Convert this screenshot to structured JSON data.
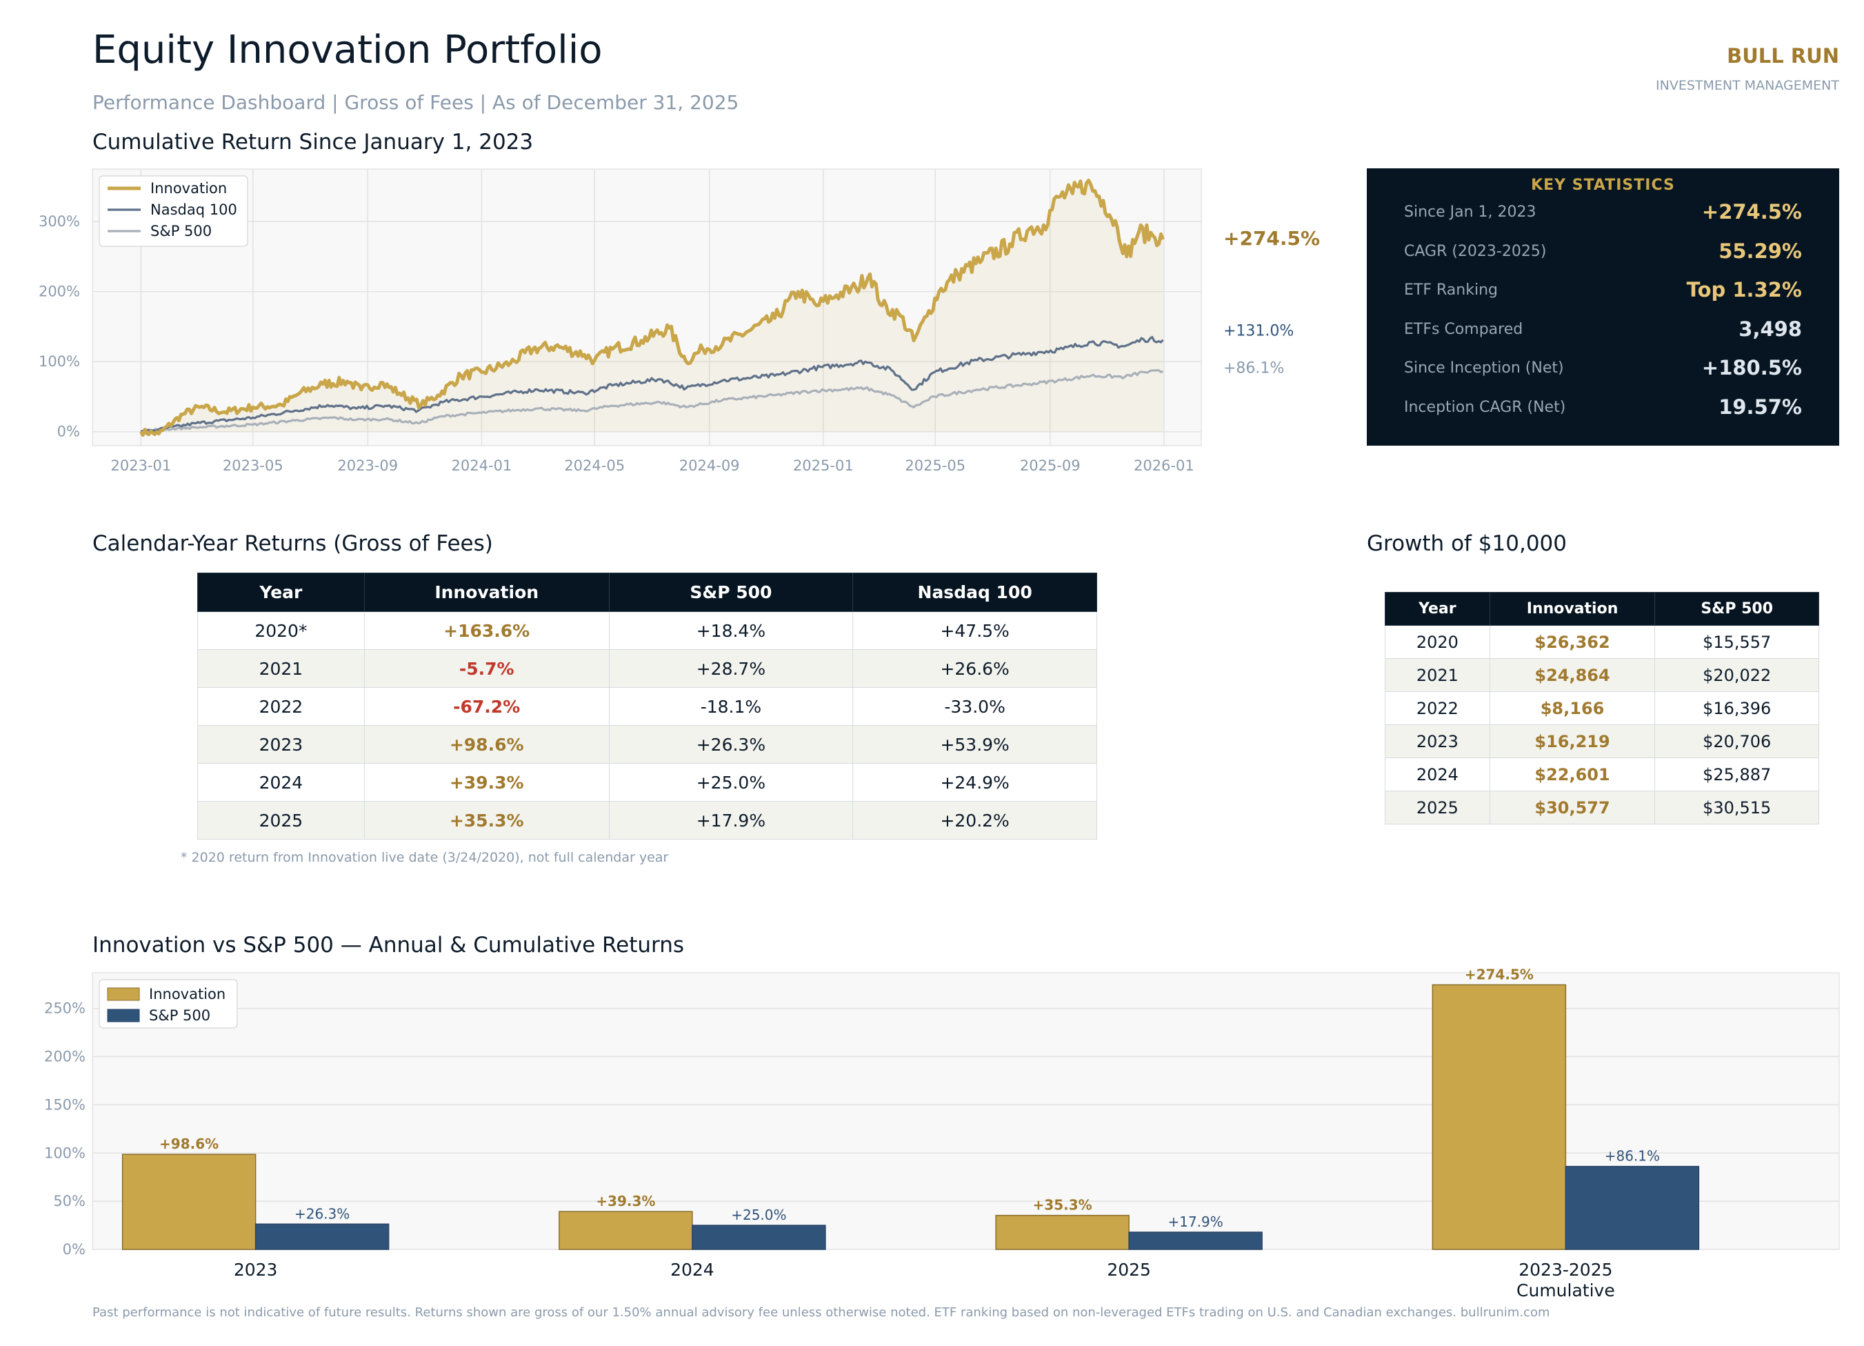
{
  "header": {
    "title": "Equity Innovation Portfolio",
    "subtitle": "Performance Dashboard  |  Gross of Fees  |  As of December 31, 2025",
    "brand": "BULL RUN",
    "brand_sub": "INVESTMENT MANAGEMENT"
  },
  "colors": {
    "gold": "#c9a64a",
    "gold_text": "#a07a2e",
    "navy": "#061521",
    "slate": "#5f7189",
    "gray": "#a9b0b9",
    "sp_blue": "#30537a",
    "red": "#c0392b"
  },
  "sections": {
    "cumulative": "Cumulative Return Since January 1, 2023",
    "calendar": "Calendar-Year Returns (Gross of Fees)",
    "growth": "Growth of $10,000",
    "bars": "Innovation vs S&P 500 — Annual & Cumulative Returns"
  },
  "stats": {
    "title": "KEY STATISTICS",
    "rows": [
      {
        "label": "Since Jan 1, 2023",
        "value": "+274.5%",
        "color": "#e8c77a"
      },
      {
        "label": "CAGR (2023-2025)",
        "value": "55.29%",
        "color": "#e8c77a"
      },
      {
        "label": "ETF Ranking",
        "value": "Top 1.32%",
        "color": "#e8c77a"
      },
      {
        "label": "ETFs Compared",
        "value": "3,498",
        "color": "#dfe6ee"
      },
      {
        "label": "Since Inception (Net)",
        "value": "+180.5%",
        "color": "#dfe6ee"
      },
      {
        "label": "Inception CAGR (Net)",
        "value": "19.57%",
        "color": "#dfe6ee"
      }
    ]
  },
  "calendar_table": {
    "headers": [
      "Year",
      "Innovation",
      "S&P 500",
      "Nasdaq 100"
    ],
    "rows": [
      [
        "2020*",
        "+163.6%",
        "+18.4%",
        "+47.5%"
      ],
      [
        "2021",
        "-5.7%",
        "+28.7%",
        "+26.6%"
      ],
      [
        "2022",
        "-67.2%",
        "-18.1%",
        "-33.0%"
      ],
      [
        "2023",
        "+98.6%",
        "+26.3%",
        "+53.9%"
      ],
      [
        "2024",
        "+39.3%",
        "+25.0%",
        "+24.9%"
      ],
      [
        "2025",
        "+35.3%",
        "+17.9%",
        "+20.2%"
      ]
    ],
    "note": "* 2020 return from Innovation live date (3/24/2020), not full calendar year"
  },
  "growth_table": {
    "headers": [
      "Year",
      "Innovation",
      "S&P 500"
    ],
    "rows": [
      [
        "2020",
        "$26,362",
        "$15,557"
      ],
      [
        "2021",
        "$24,864",
        "$20,022"
      ],
      [
        "2022",
        "$8,166",
        "$16,396"
      ],
      [
        "2023",
        "$16,219",
        "$20,706"
      ],
      [
        "2024",
        "$22,601",
        "$25,887"
      ],
      [
        "2025",
        "$30,577",
        "$30,515"
      ]
    ]
  },
  "footer": "Past performance is not indicative of future results. Returns shown are gross of our 1.50% annual advisory fee unless otherwise noted. ETF ranking based on non-leveraged ETFs trading on U.S. and Canadian exchanges. bullrunim.com",
  "chart_data": [
    {
      "type": "line",
      "title": "Cumulative Return Since January 1, 2023",
      "x_ticks": [
        "2023-01",
        "2023-05",
        "2023-09",
        "2024-01",
        "2024-05",
        "2024-09",
        "2025-01",
        "2025-05",
        "2025-09",
        "2026-01"
      ],
      "y_ticks": [
        "0%",
        "100%",
        "200%",
        "300%"
      ],
      "ylim": [
        -20,
        375
      ],
      "xlim": [
        "2022-11-10",
        "2026-02-10"
      ],
      "grid": true,
      "legend": "top-left",
      "end_labels": [
        "+274.5%",
        "+131.0%",
        "+86.1%"
      ],
      "series": [
        {
          "name": "Innovation",
          "color": "#c9a64a",
          "points": [
            [
              "2023-01-01",
              0
            ],
            [
              "2023-01-20",
              -3
            ],
            [
              "2023-02-15",
              25
            ],
            [
              "2023-03-05",
              35
            ],
            [
              "2023-04-01",
              28
            ],
            [
              "2023-05-01",
              35
            ],
            [
              "2023-06-01",
              38
            ],
            [
              "2023-06-20",
              55
            ],
            [
              "2023-07-15",
              68
            ],
            [
              "2023-08-10",
              72
            ],
            [
              "2023-08-25",
              60
            ],
            [
              "2023-09-15",
              70
            ],
            [
              "2023-10-05",
              55
            ],
            [
              "2023-10-28",
              38
            ],
            [
              "2023-11-15",
              52
            ],
            [
              "2023-12-10",
              80
            ],
            [
              "2024-01-01",
              85
            ],
            [
              "2024-02-01",
              98
            ],
            [
              "2024-02-25",
              118
            ],
            [
              "2024-03-20",
              122
            ],
            [
              "2024-04-20",
              110
            ],
            [
              "2024-05-01",
              102
            ],
            [
              "2024-05-20",
              118
            ],
            [
              "2024-06-20",
              130
            ],
            [
              "2024-07-20",
              148
            ],
            [
              "2024-08-07",
              100
            ],
            [
              "2024-08-25",
              118
            ],
            [
              "2024-09-15",
              125
            ],
            [
              "2024-10-15",
              145
            ],
            [
              "2024-11-10",
              162
            ],
            [
              "2024-12-05",
              200
            ],
            [
              "2024-12-25",
              180
            ],
            [
              "2025-01-15",
              195
            ],
            [
              "2025-02-05",
              205
            ],
            [
              "2025-02-20",
              225
            ],
            [
              "2025-03-05",
              180
            ],
            [
              "2025-03-25",
              165
            ],
            [
              "2025-04-08",
              130
            ],
            [
              "2025-04-22",
              165
            ],
            [
              "2025-05-05",
              200
            ],
            [
              "2025-05-25",
              225
            ],
            [
              "2025-06-20",
              245
            ],
            [
              "2025-07-20",
              268
            ],
            [
              "2025-08-10",
              290
            ],
            [
              "2025-08-25",
              295
            ],
            [
              "2025-09-10",
              335
            ],
            [
              "2025-09-25",
              340
            ],
            [
              "2025-10-10",
              355
            ],
            [
              "2025-10-28",
              330
            ],
            [
              "2025-11-12",
              292
            ],
            [
              "2025-11-22",
              250
            ],
            [
              "2025-12-05",
              285
            ],
            [
              "2025-12-20",
              280
            ],
            [
              "2025-12-31",
              274.5
            ]
          ]
        },
        {
          "name": "Nasdaq 100",
          "color": "#5f7189",
          "points": [
            [
              "2023-01-01",
              0
            ],
            [
              "2023-01-20",
              3
            ],
            [
              "2023-03-01",
              12
            ],
            [
              "2023-05-01",
              20
            ],
            [
              "2023-06-15",
              30
            ],
            [
              "2023-07-20",
              38
            ],
            [
              "2023-08-20",
              33
            ],
            [
              "2023-09-20",
              37
            ],
            [
              "2023-10-25",
              30
            ],
            [
              "2023-11-20",
              42
            ],
            [
              "2024-01-01",
              50
            ],
            [
              "2024-03-01",
              60
            ],
            [
              "2024-04-20",
              55
            ],
            [
              "2024-05-20",
              66
            ],
            [
              "2024-07-10",
              75
            ],
            [
              "2024-08-07",
              62
            ],
            [
              "2024-09-15",
              73
            ],
            [
              "2024-11-10",
              80
            ],
            [
              "2024-12-20",
              90
            ],
            [
              "2025-02-15",
              100
            ],
            [
              "2025-03-15",
              88
            ],
            [
              "2025-04-08",
              60
            ],
            [
              "2025-04-30",
              85
            ],
            [
              "2025-06-15",
              102
            ],
            [
              "2025-08-10",
              112
            ],
            [
              "2025-09-15",
              118
            ],
            [
              "2025-10-15",
              128
            ],
            [
              "2025-11-20",
              122
            ],
            [
              "2025-12-10",
              132
            ],
            [
              "2025-12-31",
              131.0
            ]
          ]
        },
        {
          "name": "S&P 500",
          "color": "#a9b0b9",
          "points": [
            [
              "2023-01-01",
              0
            ],
            [
              "2023-01-20",
              3
            ],
            [
              "2023-03-01",
              6
            ],
            [
              "2023-05-01",
              10
            ],
            [
              "2023-06-15",
              16
            ],
            [
              "2023-07-25",
              20
            ],
            [
              "2023-08-20",
              17
            ],
            [
              "2023-09-20",
              18
            ],
            [
              "2023-10-25",
              12
            ],
            [
              "2023-11-20",
              22
            ],
            [
              "2024-01-01",
              27
            ],
            [
              "2024-03-01",
              33
            ],
            [
              "2024-04-20",
              30
            ],
            [
              "2024-05-20",
              37
            ],
            [
              "2024-07-10",
              42
            ],
            [
              "2024-08-07",
              35
            ],
            [
              "2024-09-15",
              45
            ],
            [
              "2024-11-10",
              52
            ],
            [
              "2024-12-20",
              58
            ],
            [
              "2025-02-15",
              62
            ],
            [
              "2025-03-15",
              52
            ],
            [
              "2025-04-08",
              35
            ],
            [
              "2025-04-30",
              50
            ],
            [
              "2025-06-15",
              60
            ],
            [
              "2025-08-10",
              68
            ],
            [
              "2025-09-15",
              74
            ],
            [
              "2025-10-15",
              80
            ],
            [
              "2025-11-20",
              78
            ],
            [
              "2025-12-10",
              85
            ],
            [
              "2025-12-31",
              86.1
            ]
          ]
        }
      ]
    },
    {
      "type": "bar",
      "title": "Innovation vs S&P 500 — Annual & Cumulative Returns",
      "categories": [
        "2023",
        "2024",
        "2025",
        "2023-2025\nCumulative"
      ],
      "y_ticks": [
        "0%",
        "50%",
        "100%",
        "150%",
        "200%",
        "250%"
      ],
      "ylim": [
        0,
        287
      ],
      "grid": true,
      "legend": "top-left",
      "series": [
        {
          "name": "Innovation",
          "color": "#c9a64a",
          "values": [
            98.6,
            39.3,
            35.3,
            274.5
          ],
          "labels": [
            "+98.6%",
            "+39.3%",
            "+35.3%",
            "+274.5%"
          ]
        },
        {
          "name": "S&P 500",
          "color": "#30537a",
          "values": [
            26.3,
            25.0,
            17.9,
            86.1
          ],
          "labels": [
            "+26.3%",
            "+25.0%",
            "+17.9%",
            "+86.1%"
          ]
        }
      ]
    }
  ]
}
